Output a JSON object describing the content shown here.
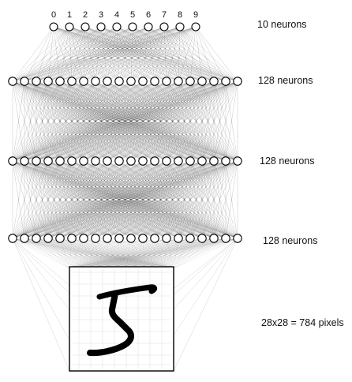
{
  "output_digits": [
    "0",
    "1",
    "2",
    "3",
    "4",
    "5",
    "6",
    "7",
    "8",
    "9"
  ],
  "layers": [
    {
      "label": "10 neurons"
    },
    {
      "label": "128 neurons"
    },
    {
      "label": "128 neurons"
    },
    {
      "label": "128 neurons"
    },
    {
      "label": "28x28 = 784 pixels"
    }
  ],
  "colors": {
    "edge": "#000000",
    "node_stroke": "#000000",
    "node_fill": "#ffffff",
    "ink": "#111111"
  }
}
